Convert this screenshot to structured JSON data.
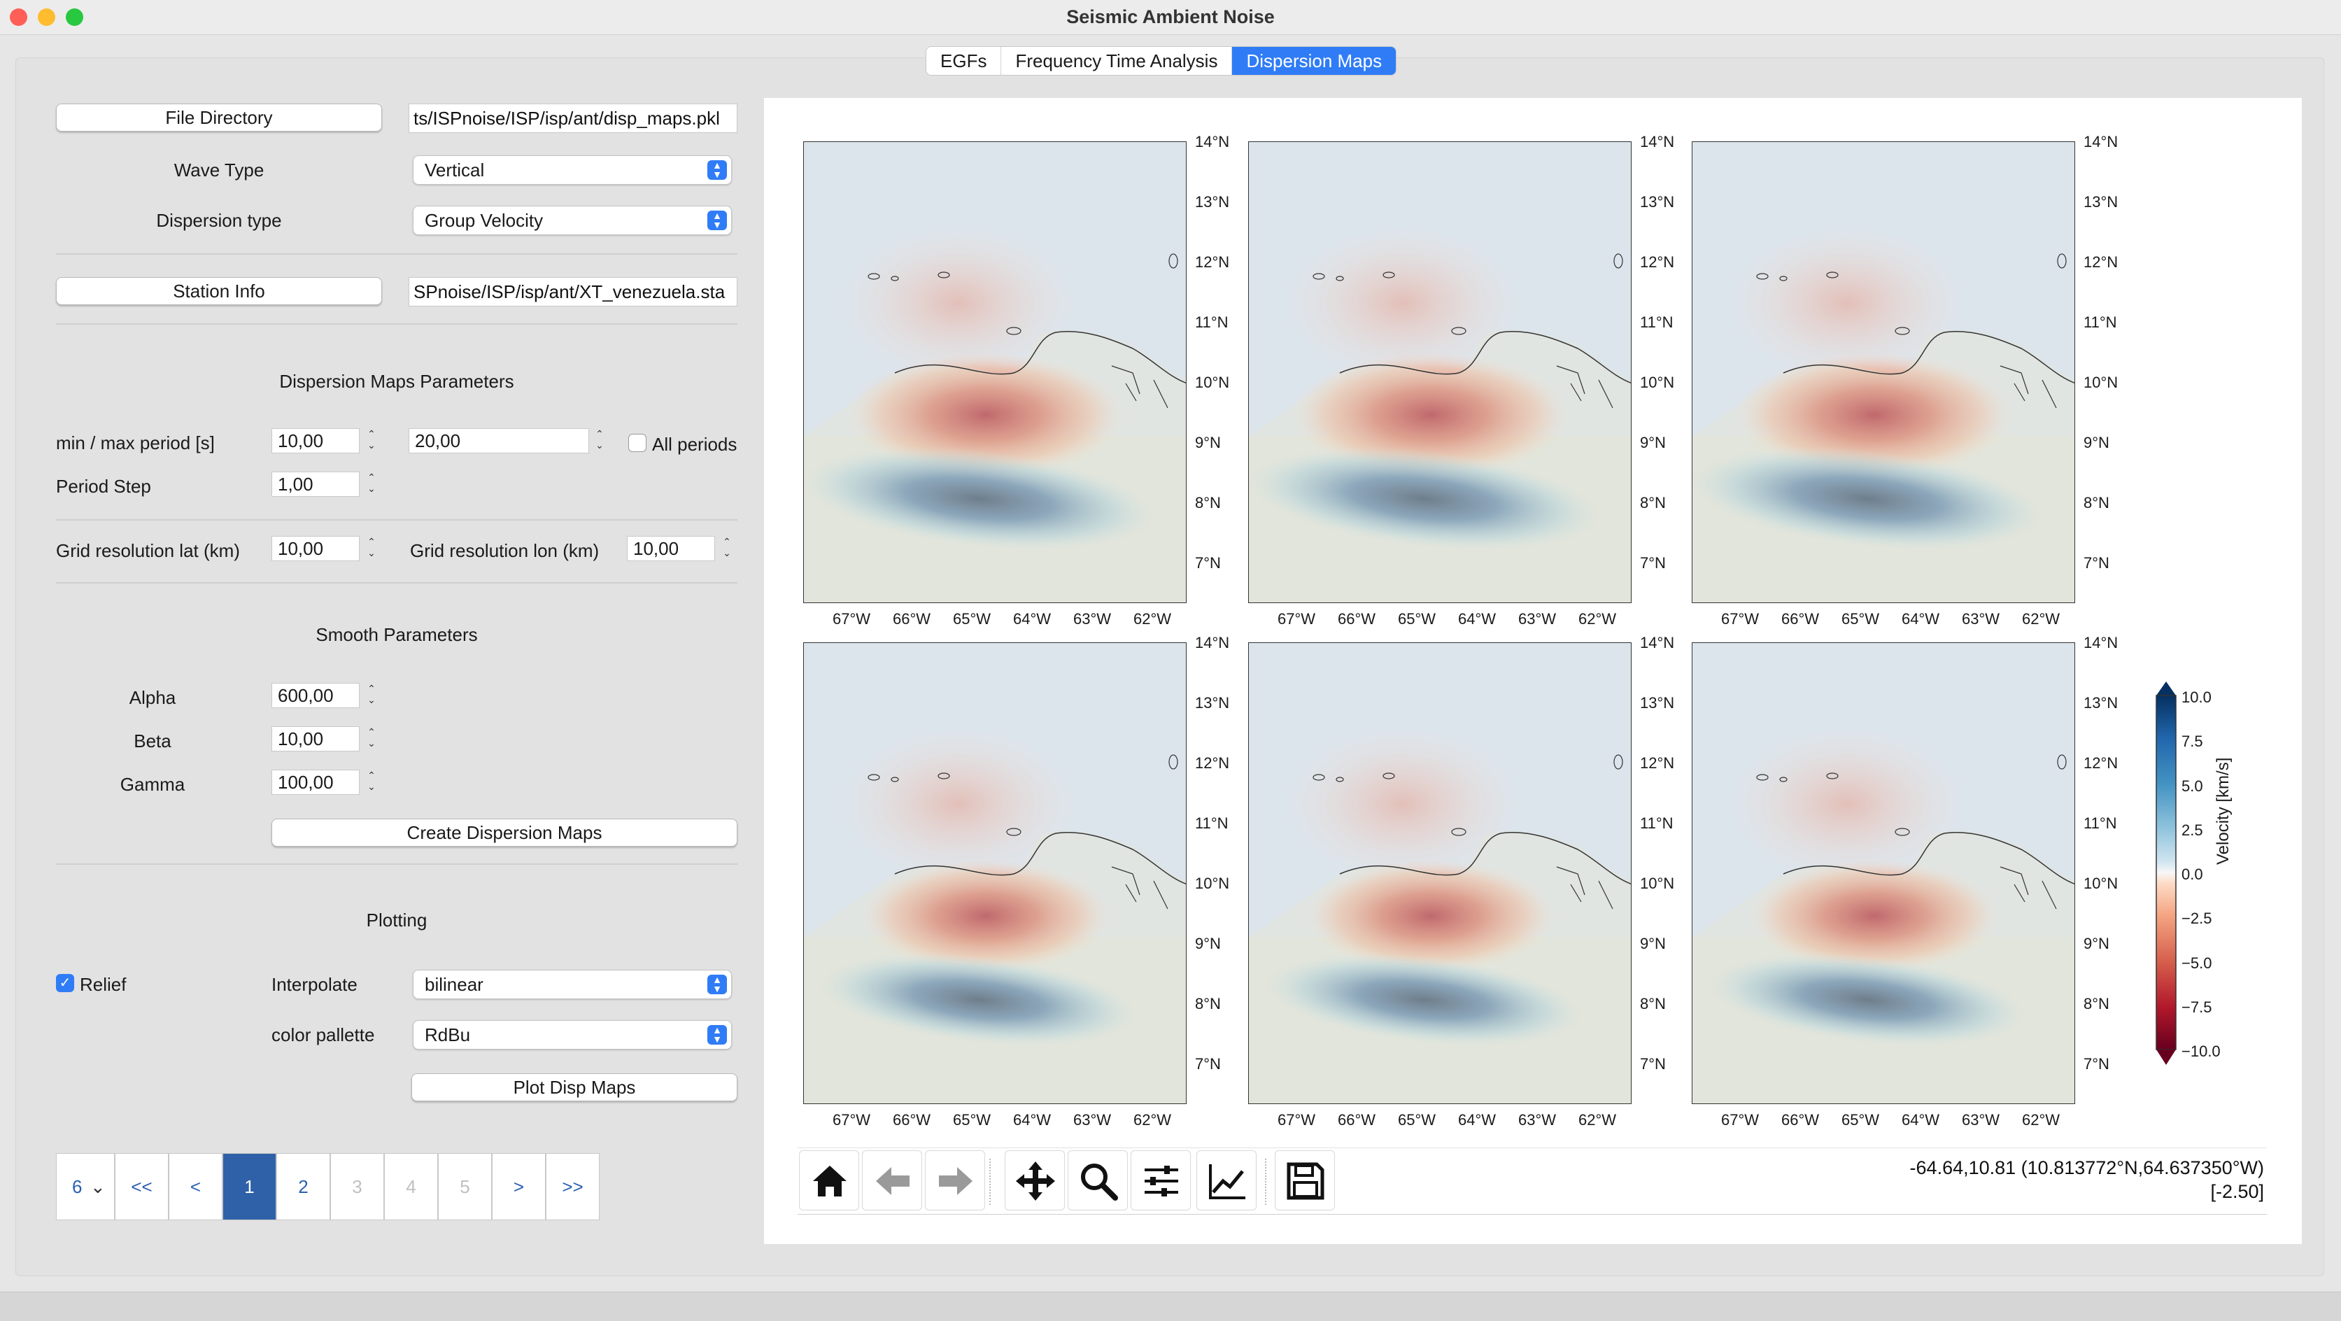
{
  "window": {
    "title": "Seismic Ambient Noise"
  },
  "tabs": [
    {
      "label": "EGFs"
    },
    {
      "label": "Frequency Time Analysis"
    },
    {
      "label": "Dispersion Maps"
    }
  ],
  "left_panel": {
    "file_directory_button": "File Directory",
    "file_directory_path": "ts/ISPnoise/ISP/isp/ant/disp_maps.pkl",
    "wave_type_label": "Wave Type",
    "wave_type_value": "Vertical",
    "dispersion_type_label": "Dispersion type",
    "dispersion_type_value": "Group Velocity",
    "station_info_button": "Station Info",
    "station_info_path": "SPnoise/ISP/isp/ant/XT_venezuela.sta",
    "dispersion_params_title": "Dispersion Maps Parameters",
    "min_max_period_label": "min / max period [s]",
    "min_period_value": "10,00",
    "max_period_value": "20,00",
    "all_periods_label": "All periods",
    "period_step_label": "Period Step",
    "period_step_value": "1,00",
    "grid_lat_label": "Grid resolution lat (km)",
    "grid_lat_value": "10,00",
    "grid_lon_label": "Grid resolution lon (km)",
    "grid_lon_value": "10,00",
    "smooth_params_title": "Smooth Parameters",
    "alpha_label": "Alpha",
    "alpha_value": "600,00",
    "beta_label": "Beta",
    "beta_value": "10,00",
    "gamma_label": "Gamma",
    "gamma_value": "100,00",
    "create_button": "Create Dispersion Maps",
    "plotting_title": "Plotting",
    "relief_label": "Relief",
    "relief_checked": true,
    "interpolate_label": "Interpolate",
    "interpolate_value": "bilinear",
    "color_palette_label": "color pallette",
    "color_palette_value": "RdBu",
    "plot_button": "Plot Disp Maps"
  },
  "pagination": {
    "select_value": "6",
    "first": "<<",
    "prev": "<",
    "pages": [
      "1",
      "2",
      "3",
      "4",
      "5"
    ],
    "current_page": "1",
    "next": ">",
    "last": ">>"
  },
  "maps": {
    "count": 6,
    "lat_ticks": [
      "14°N",
      "13°N",
      "12°N",
      "11°N",
      "10°N",
      "9°N",
      "8°N",
      "7°N"
    ],
    "lon_ticks": [
      "67°W",
      "66°W",
      "65°W",
      "64°W",
      "63°W",
      "62°W"
    ]
  },
  "colorbar": {
    "label": "Velocity [km/s]",
    "ticks": [
      "10.0",
      "7.5",
      "5.0",
      "2.5",
      "0.0",
      "−2.5",
      "−5.0",
      "−7.5",
      "−10.0"
    ],
    "colors": [
      "#67001f",
      "#b2182b",
      "#d6604d",
      "#f4a582",
      "#fddbc7",
      "#f7f7f7",
      "#d1e5f0",
      "#92c5de",
      "#4393c3",
      "#2166ac",
      "#053061"
    ]
  },
  "toolbar": {
    "icons": [
      "home-icon",
      "back-arrow-icon",
      "forward-arrow-icon",
      "pan-icon",
      "zoom-icon",
      "subplots-icon",
      "axes-icon",
      "save-icon"
    ]
  },
  "status": {
    "coords": "-64.64,10.81 (10.813772°N,64.637350°W)",
    "value": "[-2.50]"
  },
  "colors": {
    "accent": "#2f7cf6",
    "traffic_red": "#ff5f57",
    "traffic_yellow": "#febc2e",
    "traffic_green": "#28c840"
  }
}
